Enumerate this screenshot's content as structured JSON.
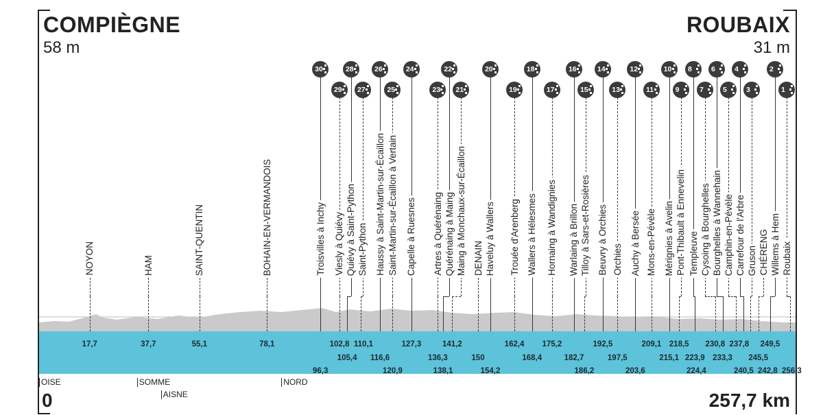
{
  "header": {
    "start": {
      "name": "COMPIÈGNE",
      "altitude": "58 m"
    },
    "finish": {
      "name": "ROUBAIX",
      "altitude": "31 m"
    }
  },
  "footer": {
    "start_km": "0",
    "total_distance": "257,7 km"
  },
  "departments": [
    {
      "name": "OISE",
      "km": 0
    },
    {
      "name": "SOMME",
      "km": 35
    },
    {
      "name": "AISNE",
      "km": 42
    },
    {
      "name": "NORD",
      "km": 83
    }
  ],
  "colors": {
    "band": "#5cc3da",
    "badge": "#3b3b3b",
    "profile": "#c9c9c9"
  },
  "points": [
    {
      "label": "NOYON",
      "km": 17.7,
      "km_label": "17,7",
      "type": "town"
    },
    {
      "label": "HAM",
      "km": 37.7,
      "km_label": "37,7",
      "type": "town"
    },
    {
      "label": "SAINT-QUENTIN",
      "km": 55.1,
      "km_label": "55,1",
      "type": "town"
    },
    {
      "label": "BOHAIN-EN-VERMANDOIS",
      "km": 78.1,
      "km_label": "78,1",
      "type": "town"
    },
    {
      "label": "Troisvilles à Inchy",
      "km": 96.3,
      "km_label": "96,3",
      "sector": "30"
    },
    {
      "label": "Viesly à Quiévy",
      "km": 102.8,
      "km_label": "102,8",
      "sector": "29"
    },
    {
      "label": "Quiévy à Saint-Python",
      "km": 105.4,
      "km_label": "105,4",
      "sector": "28"
    },
    {
      "label": "Saint-Python",
      "km": 110.1,
      "km_label": "110,1",
      "sector": "27"
    },
    {
      "label": "Haussy à Saint-Martin-sur-Écaillon",
      "km": 116.6,
      "km_label": "116,6",
      "sector": "26"
    },
    {
      "label": "Saint-Martin-sur-Écaillon à Vertain",
      "km": 120.9,
      "km_label": "120,9",
      "sector": "25"
    },
    {
      "label": "Capelle à Ruesnes",
      "km": 127.3,
      "km_label": "127,3",
      "sector": "24"
    },
    {
      "label": "Artres à Quérénaing",
      "km": 136.3,
      "km_label": "136,3",
      "sector": "23"
    },
    {
      "label": "Quérénaing à Maing",
      "km": 138.1,
      "km_label": "138,1",
      "sector": "22"
    },
    {
      "label": "Maing à Monchaux-sur-Écaillon",
      "km": 141.2,
      "km_label": "141,2",
      "sector": "21"
    },
    {
      "label": "DENAIN",
      "km": 150,
      "km_label": "150",
      "type": "town"
    },
    {
      "label": "Haveluy à Wallers",
      "km": 154.2,
      "km_label": "154,2",
      "sector": "20"
    },
    {
      "label": "Trouée d'Arenberg",
      "km": 162.4,
      "km_label": "162,4",
      "sector": "19"
    },
    {
      "label": "Wallers à Hélesmes",
      "km": 168.4,
      "km_label": "168,4",
      "sector": "18"
    },
    {
      "label": "Hornaing à Wandignies",
      "km": 175.2,
      "km_label": "175,2",
      "sector": "17"
    },
    {
      "label": "Warlaing à Brillon",
      "km": 182.7,
      "km_label": "182,7",
      "sector": "16"
    },
    {
      "label": "Tilloy à Sars-et-Rosières",
      "km": 186.2,
      "km_label": "186,2",
      "sector": "15"
    },
    {
      "label": "Beuvry à Orchies",
      "km": 192.5,
      "km_label": "192,5",
      "sector": "14"
    },
    {
      "label": "Orchies",
      "km": 197.5,
      "km_label": "197,5",
      "sector": "13"
    },
    {
      "label": "Auchy à Bersée",
      "km": 203.6,
      "km_label": "203,6",
      "sector": "12"
    },
    {
      "label": "Mons-en-Pévèle",
      "km": 209.1,
      "km_label": "209,1",
      "sector": "11"
    },
    {
      "label": "Mérignies à Avelin",
      "km": 215.1,
      "km_label": "215,1",
      "sector": "10"
    },
    {
      "label": "Pont-Thibault à Ennevelin",
      "km": 218.5,
      "km_label": "218,5",
      "sector": "9"
    },
    {
      "label": "Templeuve",
      "km": 223.9,
      "km_label": "223,9",
      "km2": 224.4,
      "km2_label": "224,4",
      "sector": "8"
    },
    {
      "label": "Cysoing à Bourghelles",
      "km": 230.8,
      "km_label": "230,8",
      "sector": "7"
    },
    {
      "label": "Bourghelles à Wannehain",
      "km": 233.3,
      "km_label": "233,3",
      "sector": "6"
    },
    {
      "label": "Camphin-en-Pévèle",
      "km": 237.8,
      "km_label": "237,8",
      "sector": "5"
    },
    {
      "label": "Carrefour de l'Arbre",
      "km": 240.5,
      "km_label": "240,5",
      "sector": "4"
    },
    {
      "label": "Gruson",
      "km": 242.8,
      "km_label": "242,8",
      "sector": "3"
    },
    {
      "label": "CHÉRENG",
      "km": 245.5,
      "km_label": "245,5",
      "type": "town"
    },
    {
      "label": "Willems à Hem",
      "km": 249.5,
      "km_label": "249,5",
      "sector": "2"
    },
    {
      "label": "Roubaix",
      "km": 256.3,
      "km_label": "256,3",
      "sector": "1"
    }
  ]
}
